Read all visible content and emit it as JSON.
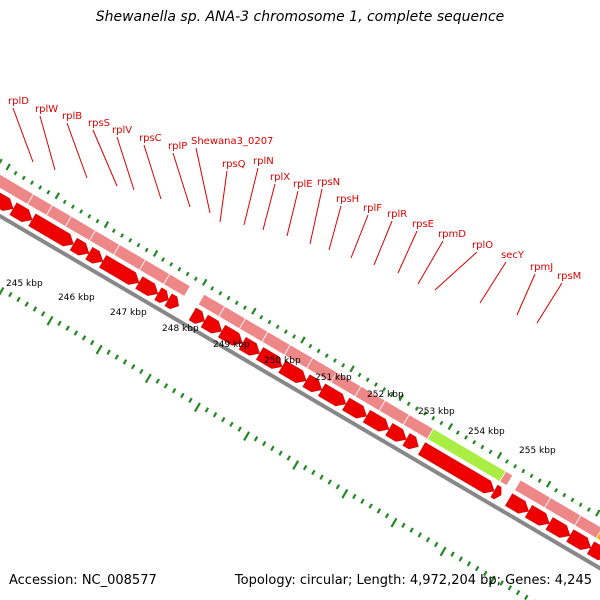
{
  "title": "Shewanella sp. ANA-3 chromosome 1, complete sequence",
  "accession": "Accession: NC_008577",
  "topology": "Topology: circular; Length: 4,972,204 bp; Genes: 4,245",
  "colors": {
    "gene_label": "#dd0000",
    "gene_track": "#ee8888",
    "cds_arrow": "#ee0000",
    "highlight_gene": "#aaee44",
    "orange_gene": "#ffaa00",
    "tick_green": "#228822",
    "backbone": "#888888"
  },
  "gene_labels": [
    "rplD",
    "rplW",
    "rplB",
    "rpsS",
    "rplV",
    "rpsC",
    "rplP",
    "Shewana3_0207",
    "rpsQ",
    "rplN",
    "rplX",
    "rplE",
    "rpsN",
    "rpsH",
    "rplF",
    "rplR",
    "rpsE",
    "rpmD",
    "rplO",
    "secY",
    "rpmJ",
    "rpsM"
  ],
  "kbp_labels": [
    "245 kbp",
    "246 kbp",
    "247 kbp",
    "248 kbp",
    "249 kbp",
    "250 kbp",
    "251 kbp",
    "252 kbp",
    "253 kbp",
    "254 kbp",
    "255 kbp"
  ]
}
